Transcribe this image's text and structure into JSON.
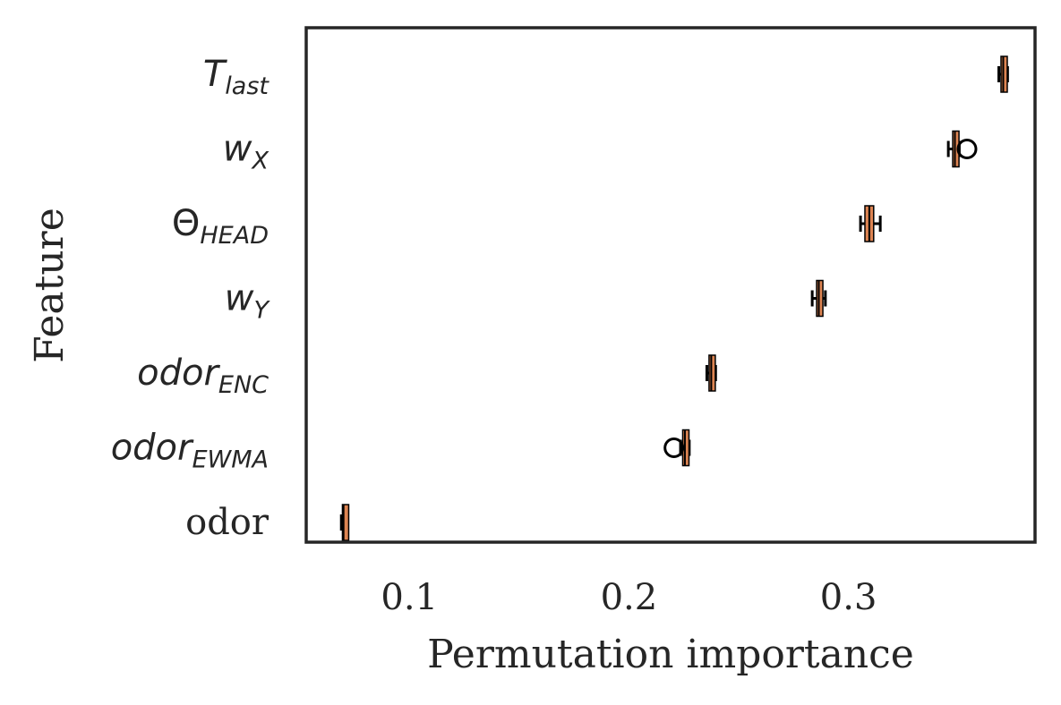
{
  "chart_data": {
    "type": "boxplot",
    "orientation": "horizontal",
    "title": "",
    "xlabel": "Permutation importance",
    "ylabel": "Feature",
    "xlim": [
      0.053,
      0.385
    ],
    "xticks": [
      0.1,
      0.2,
      0.3
    ],
    "xtick_labels": [
      "0.1",
      "0.2",
      "0.3"
    ],
    "grid": false,
    "box_color": "#dd8452",
    "median_color": "#000000",
    "categories": [
      {
        "label": "T",
        "sub": "last",
        "label_italic": true,
        "q1": 0.3695,
        "median": 0.3705,
        "q3": 0.3715,
        "whisker_low": 0.3685,
        "whisker_high": 0.3725,
        "outliers": []
      },
      {
        "label": "w",
        "sub": "X",
        "label_italic": true,
        "q1": 0.3475,
        "median": 0.3485,
        "q3": 0.3495,
        "whisker_low": 0.3455,
        "whisker_high": 0.3505,
        "outliers": [
          0.354
        ]
      },
      {
        "label": "Θ",
        "sub": "HEAD",
        "label_italic": false,
        "q1": 0.3075,
        "median": 0.3095,
        "q3": 0.3115,
        "whisker_low": 0.3055,
        "whisker_high": 0.3145,
        "outliers": []
      },
      {
        "label": "w",
        "sub": "Y",
        "label_italic": true,
        "q1": 0.2855,
        "median": 0.2865,
        "q3": 0.2875,
        "whisker_low": 0.2835,
        "whisker_high": 0.2895,
        "outliers": []
      },
      {
        "label": "odor",
        "sub": "ENC",
        "label_italic": true,
        "q1": 0.2365,
        "median": 0.2375,
        "q3": 0.2385,
        "whisker_low": 0.2355,
        "whisker_high": 0.2395,
        "outliers": []
      },
      {
        "label": "odor",
        "sub": "EWMA",
        "label_italic": true,
        "q1": 0.2245,
        "median": 0.2255,
        "q3": 0.2265,
        "whisker_low": 0.2235,
        "whisker_high": 0.2275,
        "outliers": [
          0.2205
        ]
      },
      {
        "label": "odor",
        "sub": "",
        "label_italic": false,
        "q1": 0.0695,
        "median": 0.07,
        "q3": 0.0705,
        "whisker_low": 0.069,
        "whisker_high": 0.071,
        "outliers": []
      }
    ]
  }
}
